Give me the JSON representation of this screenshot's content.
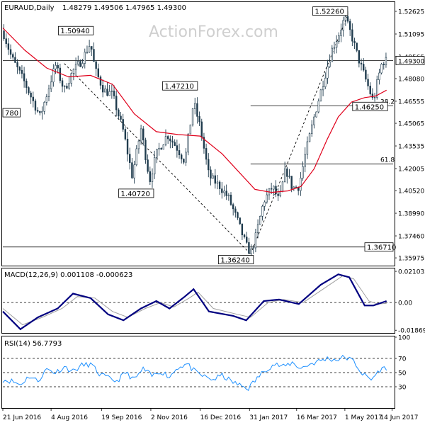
{
  "header": {
    "symbol": "EURAUD,Daily",
    "ohlc": "1.48279 1.49506 1.47965 1.49300",
    "watermark": "ActionForex.com"
  },
  "colors": {
    "candle": "#1f3b4d",
    "ma": "#e0001b",
    "macd_line": "#000080",
    "macd_signal": "#a0a0a0",
    "rsi_line": "#1e90ff",
    "grid_line": "#000000",
    "trendline": "#000000"
  },
  "chart_data": [
    {
      "type": "candlestick",
      "panel": "price",
      "title": "EURAUD,Daily",
      "ylim": [
        1.355,
        1.532
      ],
      "y_ticks": [
        "1.52625",
        "1.51095",
        "1.49565",
        "1.48080",
        "1.46555",
        "1.45065",
        "1.43535",
        "1.42005",
        "1.40520",
        "1.38990",
        "1.37460",
        "1.35975"
      ],
      "last_price": "1.49300",
      "x_ticks": [
        "21 Jun 2016",
        "4 Aug 2016",
        "19 Sep 2016",
        "2 Nov 2016",
        "16 Dec 2016",
        "31 Jan 2017",
        "16 Mar 2017",
        "1 May 2017",
        "14 Jun 2017"
      ],
      "closes": [
        {
          "t": 0,
          "v": 1.513
        },
        {
          "t": 8,
          "v": 1.495
        },
        {
          "t": 20,
          "v": 1.478
        },
        {
          "t": 34,
          "v": 1.455
        },
        {
          "t": 48,
          "v": 1.49
        },
        {
          "t": 56,
          "v": 1.473
        },
        {
          "t": 64,
          "v": 1.486
        },
        {
          "t": 72,
          "v": 1.493
        },
        {
          "t": 80,
          "v": 1.505
        },
        {
          "t": 84,
          "v": 1.487
        },
        {
          "t": 92,
          "v": 1.473
        },
        {
          "t": 100,
          "v": 1.47
        },
        {
          "t": 110,
          "v": 1.445
        },
        {
          "t": 118,
          "v": 1.415
        },
        {
          "t": 126,
          "v": 1.447
        },
        {
          "t": 134,
          "v": 1.412
        },
        {
          "t": 140,
          "v": 1.43
        },
        {
          "t": 150,
          "v": 1.443
        },
        {
          "t": 158,
          "v": 1.435
        },
        {
          "t": 166,
          "v": 1.425
        },
        {
          "t": 174,
          "v": 1.465
        },
        {
          "t": 180,
          "v": 1.448
        },
        {
          "t": 188,
          "v": 1.415
        },
        {
          "t": 198,
          "v": 1.408
        },
        {
          "t": 206,
          "v": 1.4
        },
        {
          "t": 214,
          "v": 1.385
        },
        {
          "t": 222,
          "v": 1.368
        },
        {
          "t": 226,
          "v": 1.363
        },
        {
          "t": 230,
          "v": 1.372
        },
        {
          "t": 238,
          "v": 1.398
        },
        {
          "t": 246,
          "v": 1.408
        },
        {
          "t": 252,
          "v": 1.398
        },
        {
          "t": 258,
          "v": 1.42
        },
        {
          "t": 264,
          "v": 1.407
        },
        {
          "t": 270,
          "v": 1.408
        },
        {
          "t": 276,
          "v": 1.43
        },
        {
          "t": 284,
          "v": 1.455
        },
        {
          "t": 292,
          "v": 1.478
        },
        {
          "t": 300,
          "v": 1.5
        },
        {
          "t": 306,
          "v": 1.51
        },
        {
          "t": 312,
          "v": 1.522
        },
        {
          "t": 318,
          "v": 1.51
        },
        {
          "t": 324,
          "v": 1.495
        },
        {
          "t": 332,
          "v": 1.478
        },
        {
          "t": 338,
          "v": 1.465
        },
        {
          "t": 342,
          "v": 1.48
        },
        {
          "t": 346,
          "v": 1.492
        },
        {
          "t": 350,
          "v": 1.493
        }
      ],
      "moving_average": [
        {
          "t": 0,
          "v": 1.515
        },
        {
          "t": 20,
          "v": 1.5
        },
        {
          "t": 40,
          "v": 1.488
        },
        {
          "t": 60,
          "v": 1.482
        },
        {
          "t": 80,
          "v": 1.483
        },
        {
          "t": 100,
          "v": 1.477
        },
        {
          "t": 120,
          "v": 1.457
        },
        {
          "t": 140,
          "v": 1.445
        },
        {
          "t": 160,
          "v": 1.443
        },
        {
          "t": 180,
          "v": 1.442
        },
        {
          "t": 200,
          "v": 1.43
        },
        {
          "t": 215,
          "v": 1.418
        },
        {
          "t": 230,
          "v": 1.406
        },
        {
          "t": 245,
          "v": 1.404
        },
        {
          "t": 260,
          "v": 1.405
        },
        {
          "t": 272,
          "v": 1.408
        },
        {
          "t": 284,
          "v": 1.42
        },
        {
          "t": 296,
          "v": 1.44
        },
        {
          "t": 306,
          "v": 1.455
        },
        {
          "t": 318,
          "v": 1.465
        },
        {
          "t": 330,
          "v": 1.468
        },
        {
          "t": 340,
          "v": 1.469
        },
        {
          "t": 350,
          "v": 1.473
        }
      ],
      "levels": [
        {
          "label": "1.52260",
          "value": 1.5226,
          "at": 312
        },
        {
          "label": "1.50940",
          "value": 1.5094,
          "at": 80
        },
        {
          "label": "1.47210",
          "value": 1.4721,
          "at": 175
        },
        {
          "label": "1.40720",
          "value": 1.4072,
          "at": 135
        },
        {
          "label": "1.36240",
          "value": 1.3624,
          "at": 226
        },
        {
          "label": "1.46250",
          "value": 1.4625,
          "at": 335
        },
        {
          "label": "780",
          "value": 1.4578,
          "at": 0
        }
      ],
      "horizontal_lines": [
        {
          "label": "",
          "value": 1.493
        },
        {
          "label": "38.2",
          "value": 1.4625
        },
        {
          "label": "61.8",
          "value": 1.4232
        },
        {
          "label": "1.36710",
          "value": 1.3671
        }
      ],
      "trendlines": [
        {
          "from": {
            "t": 56,
            "v": 1.491
          },
          "to": {
            "t": 226,
            "v": 1.3624
          }
        },
        {
          "from": {
            "t": 226,
            "v": 1.3624
          },
          "to": {
            "t": 314,
            "v": 1.5226
          }
        }
      ]
    },
    {
      "type": "line",
      "panel": "macd",
      "title": "MACD(12,26,9) 0.001108 -0.000623",
      "ylim": [
        -0.0205,
        0.0225
      ],
      "y_ticks": [
        "0.021032",
        "0.00",
        "-0.018699"
      ],
      "zero": 0,
      "series": [
        {
          "name": "MACD",
          "points": [
            {
              "t": 0,
              "v": -0.006
            },
            {
              "t": 16,
              "v": -0.018
            },
            {
              "t": 32,
              "v": -0.01
            },
            {
              "t": 50,
              "v": -0.004
            },
            {
              "t": 64,
              "v": 0.006
            },
            {
              "t": 80,
              "v": 0.003
            },
            {
              "t": 96,
              "v": -0.008
            },
            {
              "t": 110,
              "v": -0.012
            },
            {
              "t": 126,
              "v": -0.004
            },
            {
              "t": 140,
              "v": 0.001
            },
            {
              "t": 152,
              "v": -0.004
            },
            {
              "t": 166,
              "v": 0.004
            },
            {
              "t": 174,
              "v": 0.009
            },
            {
              "t": 188,
              "v": -0.006
            },
            {
              "t": 210,
              "v": -0.009
            },
            {
              "t": 222,
              "v": -0.012
            },
            {
              "t": 238,
              "v": 0.001
            },
            {
              "t": 252,
              "v": 0.002
            },
            {
              "t": 270,
              "v": -0.001
            },
            {
              "t": 290,
              "v": 0.012
            },
            {
              "t": 306,
              "v": 0.019
            },
            {
              "t": 316,
              "v": 0.017
            },
            {
              "t": 330,
              "v": -0.002
            },
            {
              "t": 338,
              "v": -0.002
            },
            {
              "t": 350,
              "v": 0.001
            }
          ]
        },
        {
          "name": "Signal",
          "points": [
            {
              "t": 0,
              "v": -0.004
            },
            {
              "t": 18,
              "v": -0.015
            },
            {
              "t": 36,
              "v": -0.01
            },
            {
              "t": 54,
              "v": -0.004
            },
            {
              "t": 68,
              "v": 0.004
            },
            {
              "t": 84,
              "v": 0.003
            },
            {
              "t": 100,
              "v": -0.006
            },
            {
              "t": 114,
              "v": -0.01
            },
            {
              "t": 130,
              "v": -0.004
            },
            {
              "t": 144,
              "v": 0.0
            },
            {
              "t": 156,
              "v": -0.003
            },
            {
              "t": 170,
              "v": 0.003
            },
            {
              "t": 178,
              "v": 0.007
            },
            {
              "t": 192,
              "v": -0.004
            },
            {
              "t": 214,
              "v": -0.008
            },
            {
              "t": 226,
              "v": -0.01
            },
            {
              "t": 242,
              "v": 0.0
            },
            {
              "t": 256,
              "v": 0.002
            },
            {
              "t": 274,
              "v": 0.0
            },
            {
              "t": 294,
              "v": 0.01
            },
            {
              "t": 310,
              "v": 0.018
            },
            {
              "t": 320,
              "v": 0.016
            },
            {
              "t": 334,
              "v": 0.001
            },
            {
              "t": 342,
              "v": -0.001
            },
            {
              "t": 350,
              "v": -0.0006
            }
          ]
        }
      ]
    },
    {
      "type": "line",
      "panel": "rsi",
      "title": "RSI(14) 56.7793",
      "ylim": [
        0,
        100
      ],
      "y_ticks": [
        "100",
        "70",
        "50",
        "30",
        "0"
      ],
      "reference_levels": [
        70,
        50,
        30
      ],
      "series": [
        {
          "name": "RSI",
          "points": [
            {
              "t": 0,
              "v": 40
            },
            {
              "t": 8,
              "v": 38
            },
            {
              "t": 16,
              "v": 33
            },
            {
              "t": 24,
              "v": 45
            },
            {
              "t": 32,
              "v": 38
            },
            {
              "t": 40,
              "v": 55
            },
            {
              "t": 48,
              "v": 50
            },
            {
              "t": 56,
              "v": 58
            },
            {
              "t": 64,
              "v": 52
            },
            {
              "t": 72,
              "v": 60
            },
            {
              "t": 80,
              "v": 62
            },
            {
              "t": 88,
              "v": 48
            },
            {
              "t": 96,
              "v": 42
            },
            {
              "t": 104,
              "v": 38
            },
            {
              "t": 112,
              "v": 50
            },
            {
              "t": 120,
              "v": 40
            },
            {
              "t": 128,
              "v": 55
            },
            {
              "t": 136,
              "v": 45
            },
            {
              "t": 144,
              "v": 52
            },
            {
              "t": 152,
              "v": 44
            },
            {
              "t": 160,
              "v": 58
            },
            {
              "t": 168,
              "v": 62
            },
            {
              "t": 176,
              "v": 50
            },
            {
              "t": 184,
              "v": 44
            },
            {
              "t": 192,
              "v": 40
            },
            {
              "t": 200,
              "v": 46
            },
            {
              "t": 208,
              "v": 38
            },
            {
              "t": 216,
              "v": 32
            },
            {
              "t": 224,
              "v": 28
            },
            {
              "t": 232,
              "v": 42
            },
            {
              "t": 240,
              "v": 55
            },
            {
              "t": 248,
              "v": 62
            },
            {
              "t": 256,
              "v": 58
            },
            {
              "t": 264,
              "v": 64
            },
            {
              "t": 272,
              "v": 56
            },
            {
              "t": 280,
              "v": 62
            },
            {
              "t": 288,
              "v": 66
            },
            {
              "t": 296,
              "v": 70
            },
            {
              "t": 304,
              "v": 68
            },
            {
              "t": 312,
              "v": 72
            },
            {
              "t": 320,
              "v": 66
            },
            {
              "t": 328,
              "v": 48
            },
            {
              "t": 336,
              "v": 40
            },
            {
              "t": 344,
              "v": 54
            },
            {
              "t": 350,
              "v": 57
            }
          ]
        }
      ]
    }
  ]
}
